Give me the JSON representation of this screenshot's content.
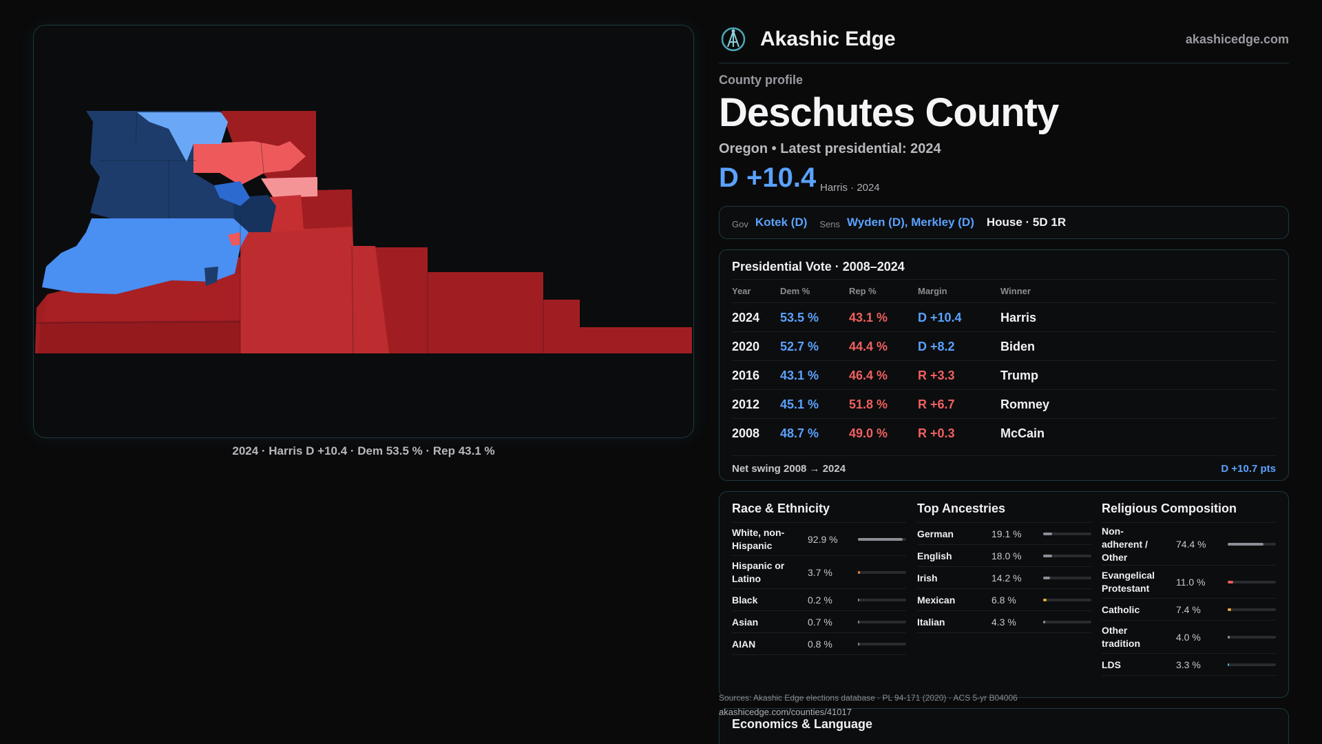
{
  "map": {
    "caption": "2024 · Harris D +10.4 · Dem 53.5 % · Rep 43.1 %",
    "colors": {
      "dem_dark": "#1d3c6b",
      "dem_mid": "#2a66c8",
      "dem_light": "#4f95f5",
      "dem_pale": "#6aa8f7",
      "rep_dark": "#9b1c20",
      "rep_mid": "#be2c2e",
      "rep_light": "#ee5a5c",
      "rep_pale": "#f58f90"
    }
  },
  "brand": {
    "name": "Akashic Edge",
    "url": "akashicedge.com",
    "logo_icon": "circle-compass-logo"
  },
  "profile": {
    "kicker": "County profile",
    "title": "Deschutes County",
    "subtitle": "Oregon • Latest presidential: 2024",
    "margin": "D +10.4",
    "margin_note": "Harris · 2024"
  },
  "officials": {
    "gov_label": "Gov",
    "gov": "Kotek (D)",
    "sens_label": "Sens",
    "sens": "Wyden (D), Merkley (D)",
    "house": "House · 5D 1R"
  },
  "presidential": {
    "title": "Presidential Vote · 2008–2024",
    "headers": {
      "year": "Year",
      "dem": "Dem %",
      "rep": "Rep %",
      "margin": "Margin",
      "winner": "Winner"
    },
    "rows": [
      {
        "year": "2024",
        "dem": "53.5 %",
        "rep": "43.1 %",
        "margin": "D +10.4",
        "party": "D",
        "winner": "Harris"
      },
      {
        "year": "2020",
        "dem": "52.7 %",
        "rep": "44.4 %",
        "margin": "D +8.2",
        "party": "D",
        "winner": "Biden"
      },
      {
        "year": "2016",
        "dem": "43.1 %",
        "rep": "46.4 %",
        "margin": "R +3.3",
        "party": "R",
        "winner": "Trump"
      },
      {
        "year": "2012",
        "dem": "45.1 %",
        "rep": "51.8 %",
        "margin": "R +6.7",
        "party": "R",
        "winner": "Romney"
      },
      {
        "year": "2008",
        "dem": "48.7 %",
        "rep": "49.0 %",
        "margin": "R +0.3",
        "party": "R",
        "winner": "McCain"
      }
    ],
    "swing_label": "Net swing 2008 → 2024",
    "swing_value": "D +10.7 pts"
  },
  "demographics": {
    "race": {
      "title": "Race & Ethnicity",
      "rows": [
        {
          "name": "White, non-Hispanic",
          "pct": "92.9 %",
          "value": 92.9,
          "color": "#8a8e96"
        },
        {
          "name": "Hispanic or Latino",
          "pct": "3.7 %",
          "value": 3.7,
          "color": "#e8843a"
        },
        {
          "name": "Black",
          "pct": "0.2 %",
          "value": 0.2,
          "color": "#8a8e96"
        },
        {
          "name": "Asian",
          "pct": "0.7 %",
          "value": 0.7,
          "color": "#8a8e96"
        },
        {
          "name": "AIAN",
          "pct": "0.8 %",
          "value": 0.8,
          "color": "#8a8e96"
        }
      ]
    },
    "ancestry": {
      "title": "Top Ancestries",
      "rows": [
        {
          "name": "German",
          "pct": "19.1 %",
          "value": 19.1,
          "color": "#8a8e96"
        },
        {
          "name": "English",
          "pct": "18.0 %",
          "value": 18.0,
          "color": "#8a8e96"
        },
        {
          "name": "Irish",
          "pct": "14.2 %",
          "value": 14.2,
          "color": "#8a8e96"
        },
        {
          "name": "Mexican",
          "pct": "6.8 %",
          "value": 6.8,
          "color": "#e8a83a"
        },
        {
          "name": "Italian",
          "pct": "4.3 %",
          "value": 4.3,
          "color": "#8a8e96"
        }
      ]
    },
    "religion": {
      "title": "Religious Composition",
      "rows": [
        {
          "name": "Non-adherent / Other",
          "pct": "74.4 %",
          "value": 74.4,
          "color": "#8a8e96"
        },
        {
          "name": "Evangelical Protestant",
          "pct": "11.0 %",
          "value": 11.0,
          "color": "#e85a5a"
        },
        {
          "name": "Catholic",
          "pct": "7.4 %",
          "value": 7.4,
          "color": "#e8a83a"
        },
        {
          "name": "Other tradition",
          "pct": "4.0 %",
          "value": 4.0,
          "color": "#8a8e96"
        },
        {
          "name": "LDS",
          "pct": "3.3 %",
          "value": 3.3,
          "color": "#3ab8c8"
        }
      ]
    }
  },
  "footer": {
    "sources": "Sources: Akashic Edge elections database · PL 94-171 (2020) · ACS 5-yr B04006",
    "url": "akashicedge.com/counties/41017",
    "econ_title": "Economics & Language"
  }
}
